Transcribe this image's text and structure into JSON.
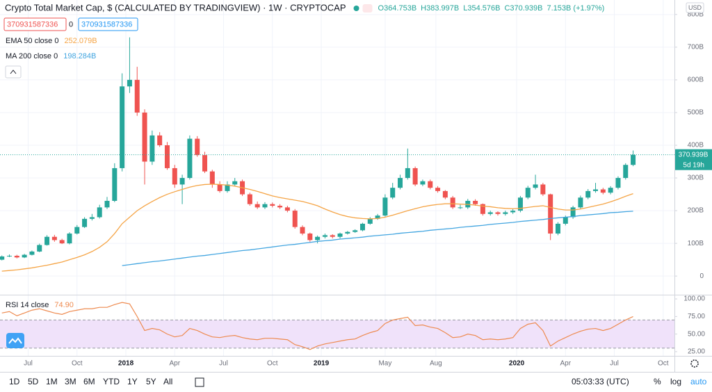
{
  "header": {
    "title": "Crypto Total Market Cap, $ (CALCULATED BY TRADINGVIEW) · 1W · CRYPTOCAP",
    "ohlc": [
      "O364.753B",
      "H383.997B",
      "L354.576B",
      "C370.939B",
      "7.153B (+1.97%)"
    ],
    "inputs": [
      "370931587336",
      "0",
      "370931587336"
    ]
  },
  "chart_data": [
    {
      "type": "candlestick",
      "x": [
        0,
        2,
        4,
        6,
        8,
        10,
        12,
        14,
        16,
        18,
        20,
        22,
        24,
        26,
        28,
        30,
        32,
        34,
        36,
        38,
        40,
        42,
        44,
        46,
        48,
        50,
        52,
        54,
        56,
        58,
        60,
        62,
        64,
        66,
        68,
        70,
        72,
        74,
        76,
        78,
        80,
        82,
        84,
        86,
        88,
        90,
        92,
        94,
        96,
        98,
        100,
        102,
        104,
        106,
        108,
        110,
        112,
        114,
        116,
        118,
        120,
        122,
        124,
        126,
        128,
        130,
        132,
        134,
        136,
        138,
        140,
        142,
        144,
        146,
        148,
        150,
        152,
        154,
        156,
        158,
        160,
        162,
        164,
        166,
        168
      ],
      "open": [
        50,
        60,
        62,
        57,
        65,
        75,
        95,
        120,
        110,
        100,
        130,
        150,
        175,
        180,
        210,
        230,
        330,
        580,
        600,
        500,
        350,
        430,
        400,
        330,
        280,
        300,
        420,
        370,
        320,
        280,
        260,
        280,
        290,
        250,
        220,
        210,
        220,
        215,
        210,
        200,
        150,
        130,
        110,
        120,
        125,
        120,
        130,
        135,
        140,
        160,
        175,
        185,
        240,
        270,
        300,
        330,
        280,
        290,
        270,
        260,
        240,
        210,
        210,
        230,
        220,
        190,
        195,
        190,
        195,
        200,
        240,
        270,
        280,
        250,
        130,
        160,
        180,
        210,
        240,
        260,
        265,
        255,
        270,
        300,
        340
      ],
      "high": [
        63,
        66,
        65,
        68,
        78,
        99,
        125,
        126,
        114,
        134,
        156,
        180,
        190,
        218,
        242,
        345,
        620,
        730,
        640,
        510,
        445,
        440,
        410,
        340,
        310,
        430,
        428,
        380,
        325,
        290,
        290,
        300,
        295,
        255,
        228,
        226,
        225,
        220,
        215,
        205,
        155,
        133,
        124,
        130,
        128,
        133,
        138,
        143,
        163,
        180,
        190,
        250,
        285,
        310,
        390,
        335,
        295,
        295,
        275,
        263,
        245,
        218,
        236,
        235,
        222,
        200,
        198,
        200,
        205,
        245,
        276,
        310,
        285,
        252,
        165,
        185,
        215,
        246,
        266,
        285,
        270,
        275,
        305,
        345,
        383.997
      ],
      "low": [
        48,
        58,
        54,
        55,
        63,
        73,
        93,
        105,
        98,
        97,
        127,
        147,
        170,
        176,
        205,
        226,
        320,
        560,
        490,
        280,
        340,
        395,
        325,
        270,
        220,
        295,
        365,
        315,
        270,
        255,
        255,
        275,
        245,
        215,
        205,
        205,
        210,
        205,
        195,
        145,
        125,
        105,
        100,
        115,
        115,
        115,
        127,
        132,
        137,
        157,
        172,
        182,
        235,
        265,
        295,
        275,
        275,
        265,
        255,
        235,
        205,
        205,
        205,
        215,
        185,
        185,
        185,
        185,
        190,
        195,
        235,
        265,
        245,
        110,
        125,
        155,
        175,
        205,
        235,
        255,
        250,
        250,
        265,
        295,
        336
      ],
      "close": [
        60,
        62,
        57,
        65,
        75,
        95,
        120,
        110,
        100,
        130,
        150,
        175,
        180,
        210,
        230,
        330,
        580,
        600,
        500,
        350,
        430,
        400,
        330,
        280,
        300,
        420,
        370,
        320,
        280,
        260,
        280,
        290,
        250,
        220,
        210,
        220,
        215,
        210,
        200,
        150,
        130,
        110,
        120,
        125,
        120,
        130,
        135,
        140,
        160,
        175,
        185,
        240,
        270,
        300,
        330,
        280,
        290,
        270,
        260,
        240,
        210,
        210,
        230,
        220,
        190,
        195,
        190,
        195,
        200,
        240,
        270,
        280,
        250,
        130,
        160,
        180,
        210,
        240,
        260,
        265,
        255,
        270,
        300,
        340,
        370.939
      ],
      "colors": {
        "up": "#26a69a",
        "down": "#ef5350"
      },
      "series": [
        {
          "name": "EMA 50 close 0",
          "value_label": "252.079B",
          "color": "#f5a445",
          "values": [
            15,
            17,
            19,
            22,
            25,
            29,
            33,
            38,
            43,
            50,
            57,
            65,
            75,
            88,
            105,
            130,
            160,
            180,
            200,
            215,
            228,
            240,
            250,
            258,
            265,
            272,
            277,
            280,
            281,
            280,
            278,
            275,
            270,
            265,
            259,
            252,
            245,
            240,
            236,
            232,
            228,
            222,
            215,
            205,
            196,
            188,
            182,
            178,
            176,
            175,
            176,
            180,
            186,
            193,
            200,
            206,
            212,
            216,
            219,
            221,
            221,
            220,
            219,
            217,
            214,
            212,
            209,
            207,
            206,
            207,
            210,
            213,
            215,
            210,
            205,
            202,
            202,
            205,
            210,
            215,
            220,
            227,
            235,
            244,
            252.079
          ]
        },
        {
          "name": "MA 200 close 0",
          "value_label": "198.284B",
          "color": "#42a5e0",
          "values": [
            null,
            null,
            null,
            null,
            null,
            null,
            null,
            null,
            null,
            null,
            null,
            null,
            null,
            null,
            null,
            null,
            32,
            35,
            38,
            41,
            44,
            46,
            49,
            52,
            55,
            58,
            61,
            63,
            66,
            69,
            72,
            75,
            78,
            80,
            83,
            86,
            89,
            92,
            95,
            97,
            100,
            103,
            106,
            108,
            110,
            113,
            115,
            117,
            119,
            122,
            124,
            126,
            128,
            131,
            133,
            135,
            137,
            140,
            142,
            144,
            146,
            149,
            151,
            153,
            155,
            158,
            160,
            162,
            164,
            167,
            169,
            171,
            173,
            176,
            178,
            180,
            182,
            185,
            187,
            189,
            191,
            194,
            195,
            197,
            198.284
          ]
        }
      ],
      "xlim": [
        -0.5,
        179
      ],
      "xticks": [
        {
          "value": 7,
          "label": "Jul"
        },
        {
          "value": 20,
          "label": "Oct"
        },
        {
          "value": 33,
          "label": "2018"
        },
        {
          "value": 46,
          "label": "Apr"
        },
        {
          "value": 59,
          "label": "Jul"
        },
        {
          "value": 72,
          "label": "Oct"
        },
        {
          "value": 85,
          "label": "2019"
        },
        {
          "value": 102,
          "label": "May"
        },
        {
          "value": 115.5,
          "label": "Aug"
        },
        {
          "value": 137,
          "label": "2020"
        },
        {
          "value": 150,
          "label": "Apr"
        },
        {
          "value": 163,
          "label": "Jul"
        },
        {
          "value": 176,
          "label": "Oct"
        }
      ],
      "ylim": [
        -57,
        823
      ],
      "yticks": [
        0,
        {
          "value": 100,
          "label": "100B"
        },
        {
          "value": 200,
          "label": "200B"
        },
        {
          "value": 300,
          "label": "300B"
        },
        {
          "value": 400,
          "label": "400B"
        },
        {
          "value": 500,
          "label": "500B"
        },
        {
          "value": 600,
          "label": "600B"
        },
        {
          "value": 700,
          "label": "700B"
        },
        {
          "value": 800,
          "label": "800B"
        }
      ],
      "last_price": {
        "value": 370.939,
        "label": "370.939B",
        "color": "#26a69a"
      },
      "countdown": "5d 19h",
      "currency": "USD",
      "grid": true
    },
    {
      "type": "line",
      "name": "RSI 14 close",
      "value_label": "74.90",
      "color": "#ee8a4f",
      "values": [
        80,
        82,
        76,
        80,
        84,
        86,
        83,
        80,
        78,
        82,
        84,
        86,
        86,
        88,
        88,
        92,
        95,
        93,
        75,
        55,
        58,
        56,
        50,
        46,
        48,
        58,
        55,
        50,
        46,
        45,
        47,
        48,
        45,
        43,
        42,
        44,
        44,
        43,
        42,
        35,
        32,
        28,
        33,
        36,
        38,
        40,
        42,
        43,
        48,
        52,
        55,
        65,
        70,
        72,
        74,
        62,
        63,
        60,
        58,
        52,
        45,
        46,
        50,
        48,
        42,
        43,
        42,
        43,
        45,
        58,
        64,
        66,
        55,
        33,
        40,
        45,
        50,
        54,
        57,
        58,
        55,
        58,
        64,
        70,
        74.9
      ],
      "ylim": [
        19,
        106
      ],
      "yticks": [
        {
          "value": 100,
          "label": "100.00"
        },
        {
          "value": 75,
          "label": "75.00"
        },
        {
          "value": 50,
          "label": "50.00"
        },
        {
          "value": 25,
          "label": "25.00"
        }
      ],
      "bands": [
        30,
        70
      ],
      "band_color": "#f0e2fa"
    }
  ],
  "toolbar": {
    "ranges": [
      "1D",
      "5D",
      "1M",
      "3M",
      "6M",
      "YTD",
      "1Y",
      "5Y",
      "All"
    ],
    "clock": "05:03:33 (UTC)",
    "options": [
      "%",
      "log",
      "auto"
    ]
  }
}
